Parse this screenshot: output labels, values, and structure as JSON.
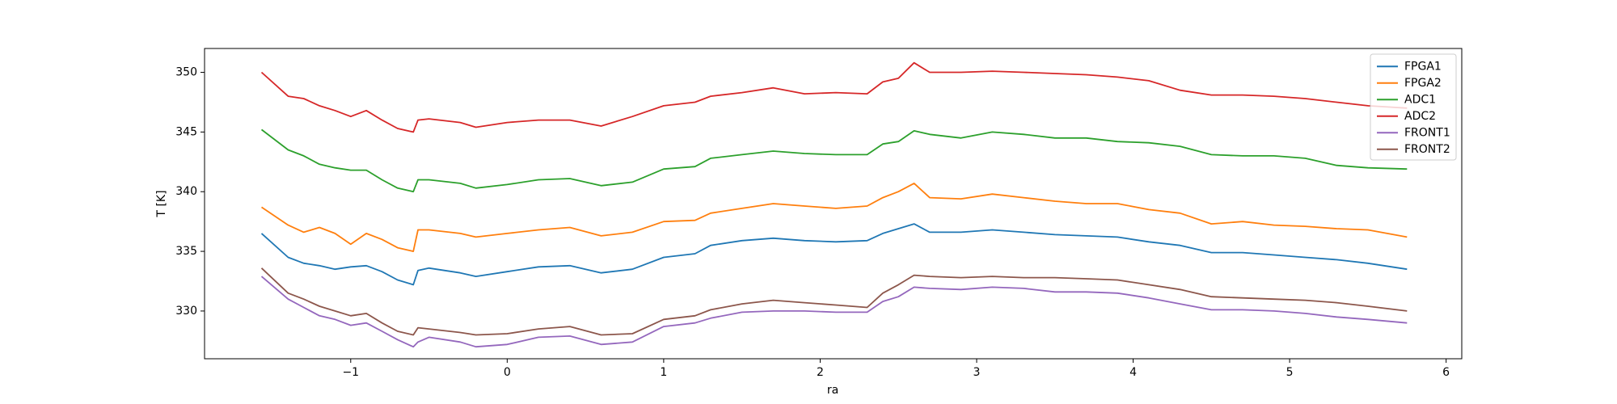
{
  "chart_data": {
    "type": "line",
    "xlabel": "ra",
    "ylabel": "T [K]",
    "x": [
      -1.57,
      -1.4,
      -1.3,
      -1.2,
      -1.1,
      -1.0,
      -0.9,
      -0.8,
      -0.7,
      -0.6,
      -0.57,
      -0.5,
      -0.3,
      -0.2,
      0,
      0.2,
      0.4,
      0.6,
      0.8,
      1.0,
      1.2,
      1.3,
      1.5,
      1.7,
      1.9,
      2.1,
      2.3,
      2.4,
      2.5,
      2.6,
      2.7,
      2.9,
      3.1,
      3.3,
      3.5,
      3.7,
      3.9,
      4.1,
      4.3,
      4.5,
      4.7,
      4.9,
      5.1,
      5.3,
      5.5,
      5.75
    ],
    "series": [
      {
        "name": "FPGA1",
        "color": "#1f77b4",
        "values": [
          336.5,
          334.5,
          334,
          333.8,
          333.5,
          333.7,
          333.8,
          333.3,
          332.6,
          332.2,
          333.4,
          333.6,
          333.2,
          332.9,
          333.3,
          333.7,
          333.8,
          333.2,
          333.5,
          334.5,
          334.8,
          335.5,
          335.9,
          336.1,
          335.9,
          335.8,
          335.9,
          336.5,
          336.9,
          337.3,
          336.6,
          336.6,
          336.8,
          336.6,
          336.4,
          336.3,
          336.2,
          335.8,
          335.5,
          334.9,
          334.9,
          334.7,
          334.5,
          334.3,
          334.0,
          333.5
        ]
      },
      {
        "name": "FPGA2",
        "color": "#ff7f0e",
        "values": [
          338.7,
          337.2,
          336.6,
          337,
          336.5,
          335.6,
          336.5,
          336,
          335.3,
          335,
          336.8,
          336.8,
          336.5,
          336.2,
          336.5,
          336.8,
          337,
          336.3,
          336.6,
          337.5,
          337.6,
          338.2,
          338.6,
          339,
          338.8,
          338.6,
          338.8,
          339.5,
          340,
          340.7,
          339.5,
          339.4,
          339.8,
          339.5,
          339.2,
          339,
          339,
          338.5,
          338.2,
          337.3,
          337.5,
          337.2,
          337.1,
          336.9,
          336.8,
          336.2
        ]
      },
      {
        "name": "ADC1",
        "color": "#2ca02c",
        "values": [
          345.2,
          343.5,
          343,
          342.3,
          342,
          341.8,
          341.8,
          341,
          340.3,
          340,
          341,
          341,
          340.7,
          340.3,
          340.6,
          341,
          341.1,
          340.5,
          340.8,
          341.9,
          342.1,
          342.8,
          343.1,
          343.4,
          343.2,
          343.1,
          343.1,
          344,
          344.2,
          345.1,
          344.8,
          344.5,
          345,
          344.8,
          344.5,
          344.5,
          344.2,
          344.1,
          343.8,
          343.1,
          343,
          343,
          342.8,
          342.2,
          342.0,
          341.9
        ]
      },
      {
        "name": "ADC2",
        "color": "#d62728",
        "values": [
          350.0,
          348,
          347.8,
          347.2,
          346.8,
          346.3,
          346.8,
          346,
          345.3,
          345,
          346,
          346.1,
          345.8,
          345.4,
          345.8,
          346,
          346,
          345.5,
          346.3,
          347.2,
          347.5,
          348,
          348.3,
          348.7,
          348.2,
          348.3,
          348.2,
          349.2,
          349.5,
          350.8,
          350,
          350,
          350.1,
          350,
          349.9,
          349.8,
          349.6,
          349.3,
          348.5,
          348.1,
          348.1,
          348,
          347.8,
          347.5,
          347.2,
          347.0
        ]
      },
      {
        "name": "FRONT1",
        "color": "#9467bd",
        "values": [
          332.9,
          331,
          330.3,
          329.6,
          329.3,
          328.8,
          329,
          328.3,
          327.6,
          327,
          327.4,
          327.8,
          327.4,
          327,
          327.2,
          327.8,
          327.9,
          327.2,
          327.4,
          328.7,
          329,
          329.4,
          329.9,
          330,
          330,
          329.9,
          329.9,
          330.8,
          331.2,
          332,
          331.9,
          331.8,
          332,
          331.9,
          331.6,
          331.6,
          331.5,
          331.1,
          330.6,
          330.1,
          330.1,
          330,
          329.8,
          329.5,
          329.3,
          329.0
        ]
      },
      {
        "name": "FRONT2",
        "color": "#8c564b",
        "values": [
          333.6,
          331.5,
          331,
          330.4,
          330,
          329.6,
          329.8,
          329,
          328.3,
          328,
          328.6,
          328.5,
          328.2,
          328,
          328.1,
          328.5,
          328.7,
          328,
          328.1,
          329.3,
          329.6,
          330.1,
          330.6,
          330.9,
          330.7,
          330.5,
          330.3,
          331.5,
          332.2,
          333,
          332.9,
          332.8,
          332.9,
          332.8,
          332.8,
          332.7,
          332.6,
          332.2,
          331.8,
          331.2,
          331.1,
          331,
          330.9,
          330.7,
          330.4,
          330.0
        ]
      }
    ],
    "xlim": [
      -1.934,
      6.1
    ],
    "xticks": [
      {
        "value": -1,
        "label": "−1"
      },
      0,
      1,
      2,
      3,
      4,
      5,
      6
    ],
    "ylim": [
      326,
      352
    ],
    "yticks": [
      330,
      335,
      340,
      345,
      350
    ],
    "grid": false,
    "legend": "upper right"
  }
}
